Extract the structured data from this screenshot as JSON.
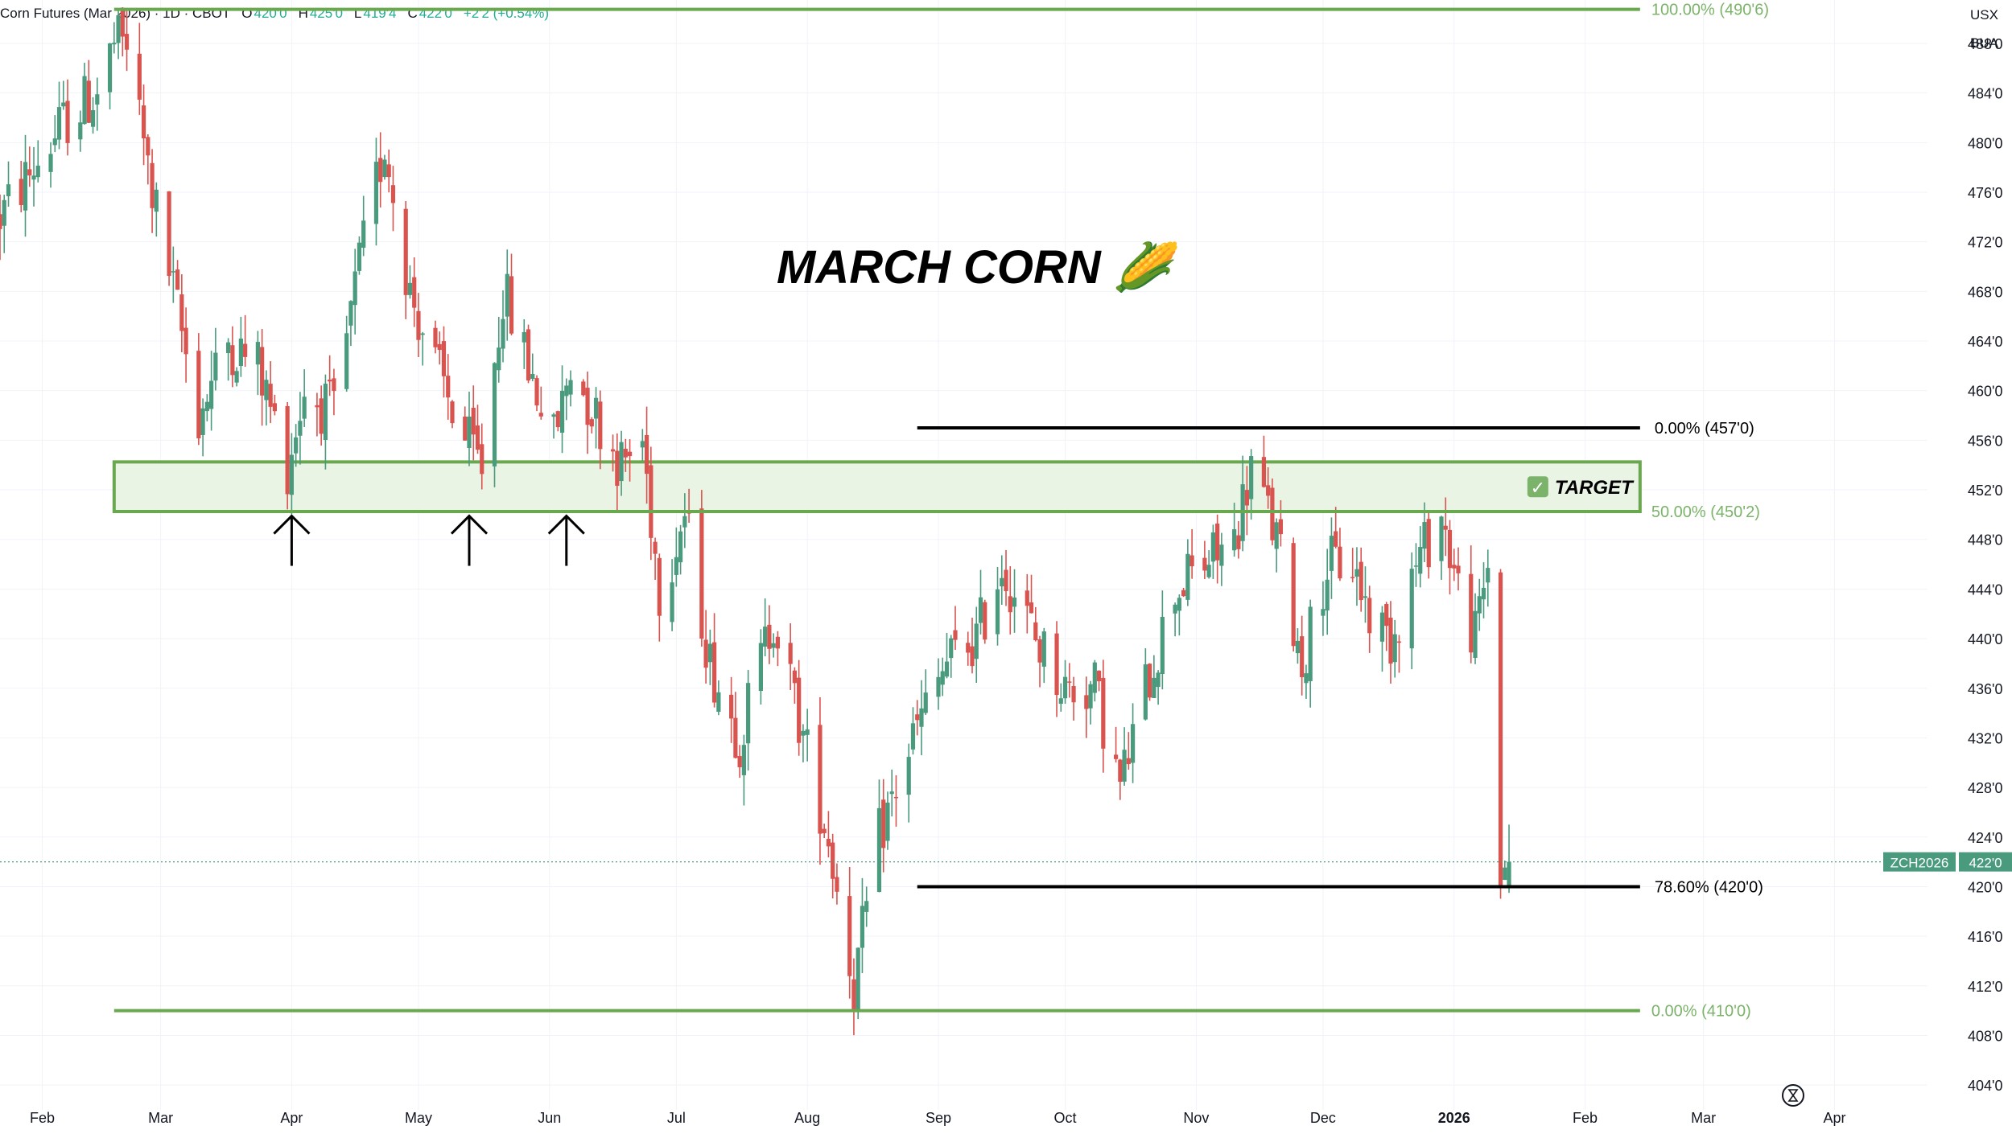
{
  "header": {
    "symbol_title": "Corn Futures (Mar 2026) · 1D · CBOT",
    "open_label": "O",
    "open": "420'0",
    "high_label": "H",
    "high": "425'0",
    "low_label": "L",
    "low": "419'4",
    "close_label": "C",
    "close": "422'0",
    "change": "+2'2 (+0.54%)"
  },
  "currency": "USX",
  "unit": "BUA",
  "colors": {
    "up": "#4a9a7e",
    "down": "#d9534f",
    "fib_green": "#6aa84f",
    "fib_green_text": "#7cb36a",
    "zone_fill": "#e9f4e4",
    "black": "#000000",
    "grid": "#f0f3fa",
    "axis_text": "#131722",
    "price_tag": "#4a9a7e"
  },
  "chart_data": {
    "type": "candlestick",
    "title": "MARCH CORN 🌽",
    "symbol_tag": "ZCH2026",
    "last_price": 422,
    "last_price_label": "422'0",
    "ylim": [
      402,
      491.5
    ],
    "y_ticks": [
      {
        "v": 488,
        "label": "488'0"
      },
      {
        "v": 484,
        "label": "484'0"
      },
      {
        "v": 480,
        "label": "480'0"
      },
      {
        "v": 476,
        "label": "476'0"
      },
      {
        "v": 472,
        "label": "472'0"
      },
      {
        "v": 468,
        "label": "468'0"
      },
      {
        "v": 464,
        "label": "464'0"
      },
      {
        "v": 460,
        "label": "460'0"
      },
      {
        "v": 456,
        "label": "456'0"
      },
      {
        "v": 452,
        "label": "452'0"
      },
      {
        "v": 448,
        "label": "448'0"
      },
      {
        "v": 444,
        "label": "444'0"
      },
      {
        "v": 440,
        "label": "440'0"
      },
      {
        "v": 436,
        "label": "436'0"
      },
      {
        "v": 432,
        "label": "432'0"
      },
      {
        "v": 428,
        "label": "428'0"
      },
      {
        "v": 424,
        "label": "424'0"
      },
      {
        "v": 420,
        "label": "420'0"
      },
      {
        "v": 416,
        "label": "416'0"
      },
      {
        "v": 412,
        "label": "412'0"
      },
      {
        "v": 408,
        "label": "408'0"
      },
      {
        "v": 404,
        "label": "404'0"
      }
    ],
    "x_start": "2025-01-22",
    "x_end": "2026-04-23",
    "x_ticks": [
      {
        "date": "2025-02-01",
        "label": "Feb"
      },
      {
        "date": "2025-03-01",
        "label": "Mar"
      },
      {
        "date": "2025-04-01",
        "label": "Apr"
      },
      {
        "date": "2025-05-01",
        "label": "May"
      },
      {
        "date": "2025-06-01",
        "label": "Jun"
      },
      {
        "date": "2025-07-01",
        "label": "Jul"
      },
      {
        "date": "2025-08-01",
        "label": "Aug"
      },
      {
        "date": "2025-09-01",
        "label": "Sep"
      },
      {
        "date": "2025-10-01",
        "label": "Oct"
      },
      {
        "date": "2025-11-01",
        "label": "Nov"
      },
      {
        "date": "2025-12-01",
        "label": "Dec"
      },
      {
        "date": "2026-01-01",
        "label": "2026",
        "bold": true
      },
      {
        "date": "2026-02-01",
        "label": "Feb"
      },
      {
        "date": "2026-03-01",
        "label": "Mar"
      },
      {
        "date": "2026-04-01",
        "label": "Apr"
      }
    ],
    "close_anchors": [
      [
        "2025-01-22",
        474
      ],
      [
        "2025-01-30",
        478
      ],
      [
        "2025-02-07",
        482
      ],
      [
        "2025-02-14",
        484
      ],
      [
        "2025-02-18",
        488
      ],
      [
        "2025-02-21",
        488
      ],
      [
        "2025-02-27",
        476
      ],
      [
        "2025-03-04",
        468
      ],
      [
        "2025-03-10",
        458
      ],
      [
        "2025-03-17",
        464
      ],
      [
        "2025-03-24",
        462
      ],
      [
        "2025-03-31",
        454
      ],
      [
        "2025-04-04",
        460
      ],
      [
        "2025-04-11",
        458
      ],
      [
        "2025-04-17",
        470
      ],
      [
        "2025-04-23",
        480
      ],
      [
        "2025-04-29",
        468
      ],
      [
        "2025-05-05",
        462
      ],
      [
        "2025-05-12",
        456
      ],
      [
        "2025-05-16",
        454
      ],
      [
        "2025-05-21",
        468
      ],
      [
        "2025-05-27",
        462
      ],
      [
        "2025-06-02",
        456
      ],
      [
        "2025-06-06",
        462
      ],
      [
        "2025-06-12",
        458
      ],
      [
        "2025-06-18",
        454
      ],
      [
        "2025-06-23",
        456
      ],
      [
        "2025-06-27",
        444
      ],
      [
        "2025-07-03",
        450
      ],
      [
        "2025-07-09",
        438
      ],
      [
        "2025-07-16",
        432
      ],
      [
        "2025-07-24",
        442
      ],
      [
        "2025-07-31",
        432
      ],
      [
        "2025-08-06",
        424
      ],
      [
        "2025-08-12",
        412
      ],
      [
        "2025-08-18",
        424
      ],
      [
        "2025-08-26",
        432
      ],
      [
        "2025-09-03",
        438
      ],
      [
        "2025-09-10",
        440
      ],
      [
        "2025-09-16",
        446
      ],
      [
        "2025-09-24",
        440
      ],
      [
        "2025-10-01",
        436
      ],
      [
        "2025-10-08",
        436
      ],
      [
        "2025-10-14",
        428
      ],
      [
        "2025-10-20",
        436
      ],
      [
        "2025-10-27",
        444
      ],
      [
        "2025-11-03",
        446
      ],
      [
        "2025-11-10",
        448
      ],
      [
        "2025-11-14",
        454
      ],
      [
        "2025-11-20",
        448
      ],
      [
        "2025-11-26",
        438
      ],
      [
        "2025-12-02",
        446
      ],
      [
        "2025-12-08",
        446
      ],
      [
        "2025-12-12",
        442
      ],
      [
        "2025-12-17",
        440
      ],
      [
        "2025-12-23",
        446
      ],
      [
        "2025-12-29",
        450
      ],
      [
        "2026-01-02",
        444
      ],
      [
        "2026-01-06",
        440
      ],
      [
        "2026-01-09",
        446
      ],
      [
        "2026-01-12",
        421
      ],
      [
        "2026-01-14",
        422
      ]
    ],
    "fib_green": {
      "levels": [
        {
          "value": 490.75,
          "label": "100.00% (490'6)"
        },
        {
          "value": 450.25,
          "label": "50.00% (450'2)"
        },
        {
          "value": 410,
          "label": "0.00% (410'0)"
        }
      ],
      "start": "2025-02-18",
      "end": "2026-02-14"
    },
    "fib_black": {
      "levels": [
        {
          "value": 457,
          "label": "0.00% (457'0)"
        },
        {
          "value": 420,
          "label": "78.60% (420'0)"
        }
      ],
      "start": "2025-08-27",
      "end": "2026-02-14"
    },
    "target_zone": {
      "top": 454.25,
      "bottom": 450.25,
      "start": "2025-02-18",
      "end": "2026-02-14",
      "check": "✓",
      "label": "TARGET"
    },
    "support_arrows": [
      {
        "date": "2025-04-01",
        "value": 450.8
      },
      {
        "date": "2025-05-13",
        "value": 450.8
      },
      {
        "date": "2025-06-05",
        "value": 450.8
      }
    ]
  }
}
